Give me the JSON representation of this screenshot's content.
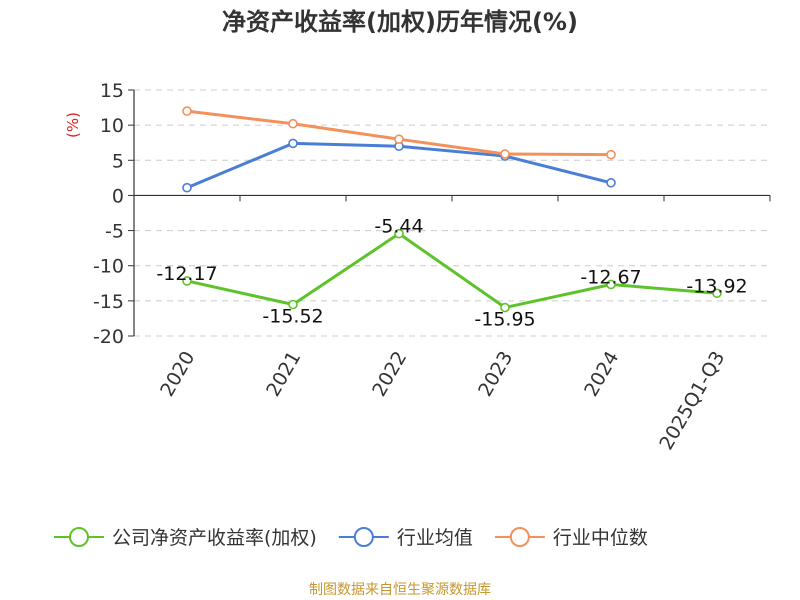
{
  "chart_data": {
    "type": "line",
    "title": "净资产收益率(加权)历年情况(%)",
    "ylabel": "(%)",
    "categories": [
      "2020",
      "2021",
      "2022",
      "2023",
      "2024",
      "2025Q1-Q3"
    ],
    "ylim": [
      -20,
      15
    ],
    "yticks": [
      15,
      10,
      5,
      0,
      -5,
      -10,
      -15,
      -20
    ],
    "ytick_labels": [
      "15",
      "10",
      "5",
      "0",
      "-5",
      "-10",
      "-15",
      "-20"
    ],
    "series": [
      {
        "name": "公司净资产收益率(加权)",
        "color": "#5ec32a",
        "values": [
          -12.17,
          -15.52,
          -5.44,
          -15.95,
          -12.67,
          -13.92
        ],
        "labels": [
          "-12.17",
          "-15.52",
          "-5.44",
          "-15.95",
          "-12.67",
          "-13.92"
        ]
      },
      {
        "name": "行业均值",
        "color": "#4a7ed6",
        "values": [
          1.1,
          7.4,
          7.0,
          5.6,
          1.8,
          null
        ]
      },
      {
        "name": "行业中位数",
        "color": "#f4915a",
        "values": [
          12.0,
          10.2,
          8.0,
          5.9,
          5.8,
          null
        ]
      }
    ],
    "grid": true,
    "legend_position": "bottom"
  },
  "source_note": "制图数据来自恒生聚源数据库",
  "colors": {
    "unit_label": "#e02020",
    "source_note": "#c8962e",
    "grid": "#cccccc",
    "axis": "#333333"
  }
}
